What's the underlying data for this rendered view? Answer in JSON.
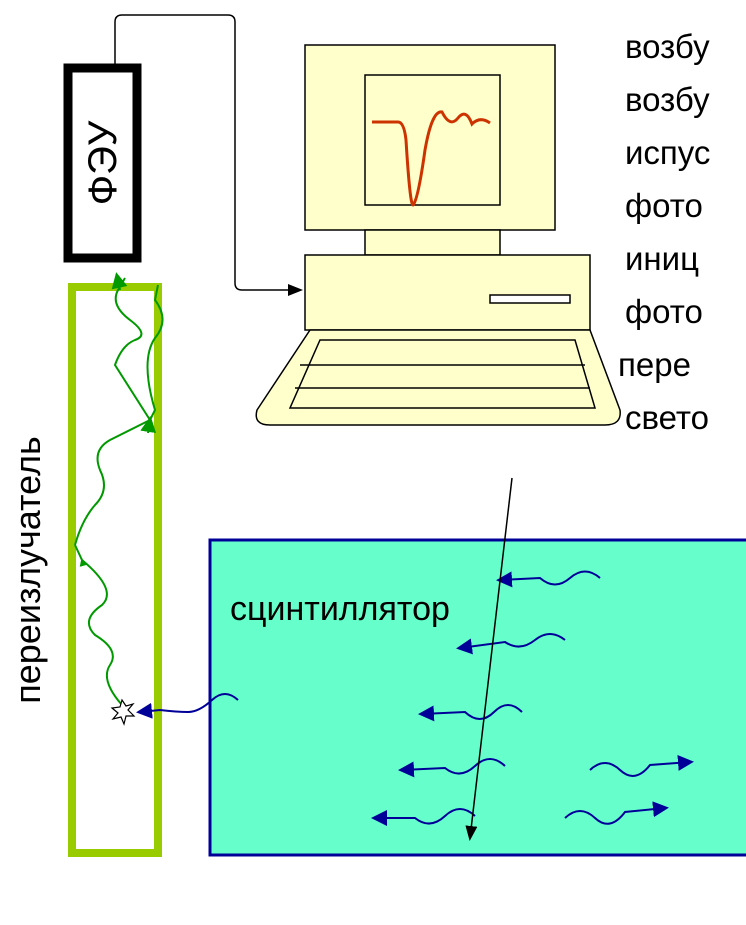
{
  "labels": {
    "pmt": "ФЭУ",
    "wavelength_shifter": "переизлучатель",
    "scintillator": "сцинтиллятор"
  },
  "text_lines": [
    "возбу",
    "возбу",
    "испус",
    "фото",
    "иниц",
    "фото",
    "пере",
    "свето"
  ]
}
